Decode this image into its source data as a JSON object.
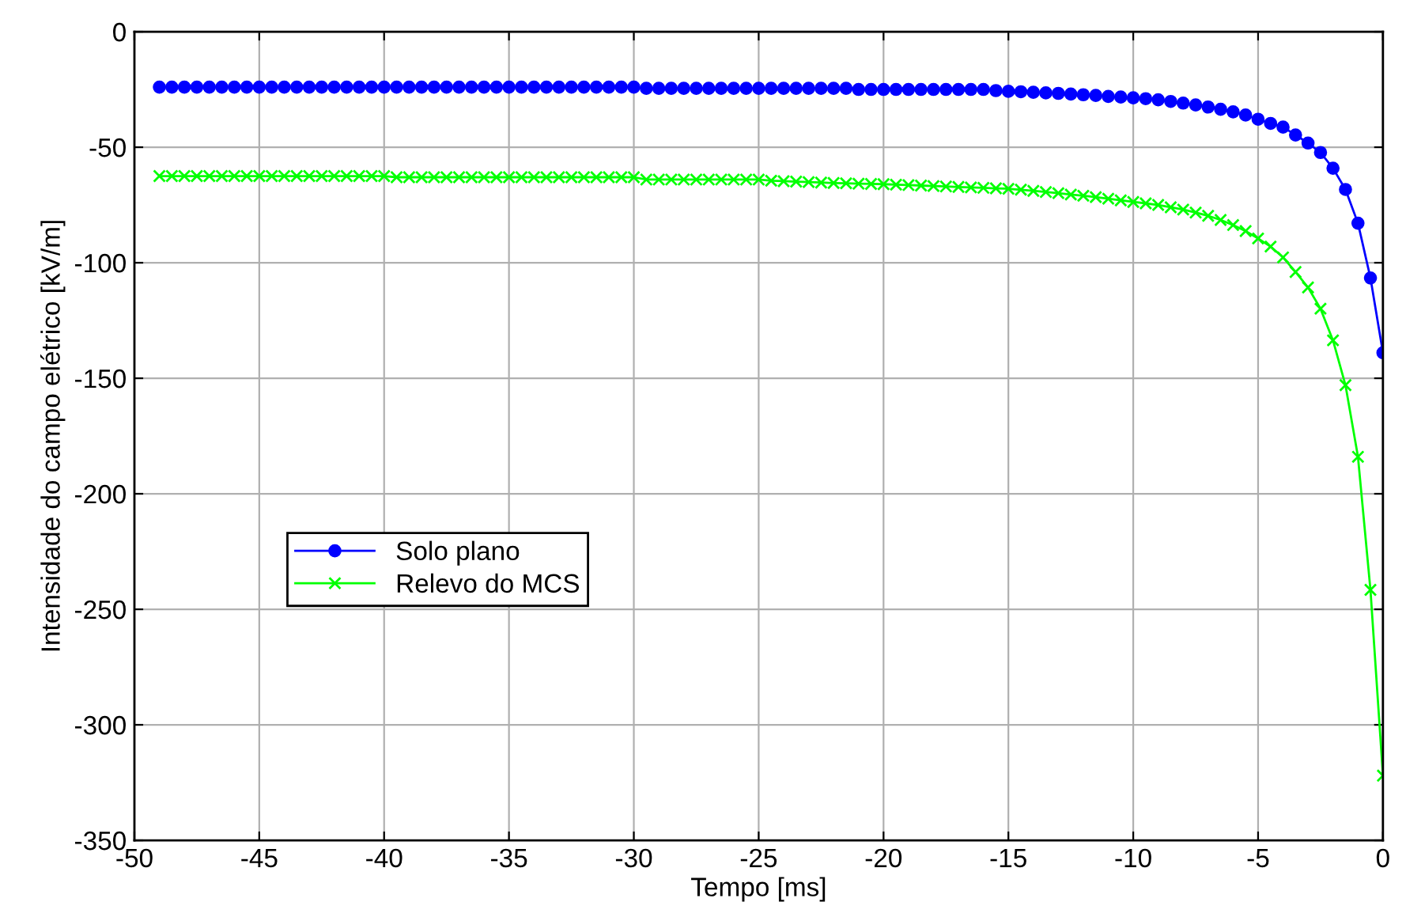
{
  "chart_data": {
    "type": "line",
    "xlabel": "Tempo [ms]",
    "ylabel": "Intensidade do campo elétrico [kV/m]",
    "x": [
      -49,
      -48.5,
      -48,
      -47.5,
      -47,
      -46.5,
      -46,
      -45.5,
      -45,
      -44.5,
      -44,
      -43.5,
      -43,
      -42.5,
      -42,
      -41.5,
      -41,
      -40.5,
      -40,
      -39.5,
      -39,
      -38.5,
      -38,
      -37.5,
      -37,
      -36.5,
      -36,
      -35.5,
      -35,
      -34.5,
      -34,
      -33.5,
      -33,
      -32.5,
      -32,
      -31.5,
      -31,
      -30.5,
      -30,
      -29.5,
      -29,
      -28.5,
      -28,
      -27.5,
      -27,
      -26.5,
      -26,
      -25.5,
      -25,
      -24.5,
      -24,
      -23.5,
      -23,
      -22.5,
      -22,
      -21.5,
      -21,
      -20.5,
      -20,
      -19.5,
      -19,
      -18.5,
      -18,
      -17.5,
      -17,
      -16.5,
      -16,
      -15.5,
      -15,
      -14.5,
      -14,
      -13.5,
      -13,
      -12.5,
      -12,
      -11.5,
      -11,
      -10.5,
      -10,
      -9.5,
      -9,
      -8.5,
      -8,
      -7.5,
      -7,
      -6.5,
      -6,
      -5.5,
      -5,
      -4.5,
      -4,
      -3.5,
      -3,
      -2.5,
      -2,
      -1.5,
      -1,
      -0.5,
      0
    ],
    "series": [
      {
        "name": "Solo plano",
        "color": "#0000ff",
        "marker": "circle",
        "values": [
          -24,
          -24,
          -24,
          -24,
          -24,
          -24,
          -24,
          -24,
          -24,
          -24,
          -24,
          -24,
          -24,
          -24,
          -24,
          -24,
          -24,
          -24,
          -24,
          -24,
          -24,
          -24,
          -24,
          -24,
          -24,
          -24,
          -24,
          -24,
          -24,
          -24,
          -24,
          -24,
          -24,
          -24,
          -24,
          -24,
          -24,
          -24,
          -24,
          -24.5,
          -24.5,
          -24.5,
          -24.5,
          -24.5,
          -24.5,
          -24.5,
          -24.5,
          -24.5,
          -24.5,
          -24.5,
          -24.5,
          -24.5,
          -24.5,
          -24.5,
          -24.5,
          -24.5,
          -25,
          -25,
          -25,
          -25,
          -25,
          -25,
          -25,
          -25,
          -25,
          -25,
          -25,
          -25.5,
          -25.8,
          -26,
          -26.2,
          -26.5,
          -26.7,
          -27,
          -27.3,
          -27.6,
          -28,
          -28.3,
          -28.6,
          -29,
          -29.5,
          -30.2,
          -30.9,
          -31.7,
          -32.6,
          -33.6,
          -34.7,
          -36.1,
          -37.9,
          -39.7,
          -41.3,
          -44.7,
          -48.2,
          -52.3,
          -59.1,
          -68.3,
          -82.9,
          -106.6,
          -139
        ]
      },
      {
        "name": "Relevo do MCS",
        "color": "#00ff00",
        "marker": "cross",
        "values": [
          -62.5,
          -62.5,
          -62.5,
          -62.5,
          -62.5,
          -62.5,
          -62.5,
          -62.5,
          -62.5,
          -62.5,
          -62.5,
          -62.5,
          -62.5,
          -62.5,
          -62.5,
          -62.5,
          -62.5,
          -62.5,
          -62.5,
          -63,
          -63,
          -63,
          -63,
          -63,
          -63,
          -63,
          -63,
          -63,
          -63,
          -63,
          -63,
          -63,
          -63,
          -63,
          -63,
          -63,
          -63,
          -63,
          -63,
          -64,
          -64,
          -64,
          -64,
          -64,
          -64,
          -64,
          -64,
          -64,
          -64,
          -64.5,
          -64.7,
          -64.9,
          -65.1,
          -65.3,
          -65.5,
          -65.6,
          -65.8,
          -65.9,
          -66,
          -66.2,
          -66.4,
          -66.6,
          -66.8,
          -67,
          -67.2,
          -67.4,
          -67.6,
          -67.8,
          -68,
          -68.4,
          -68.9,
          -69.4,
          -69.9,
          -70.5,
          -71,
          -71.6,
          -72.3,
          -73,
          -73.7,
          -74.3,
          -75,
          -76,
          -77,
          -78.3,
          -79.7,
          -81.5,
          -83.7,
          -86.3,
          -89.5,
          -93,
          -97.7,
          -104,
          -110.7,
          -119.9,
          -133.6,
          -153,
          -184,
          -241.6,
          -322
        ]
      }
    ],
    "xlim": [
      -50,
      0
    ],
    "xticks": [
      -50,
      -45,
      -40,
      -35,
      -30,
      -25,
      -20,
      -15,
      -10,
      -5,
      0
    ],
    "ylim": [
      -350,
      0
    ],
    "yticks": [
      -350,
      -300,
      -250,
      -200,
      -150,
      -100,
      -50,
      0
    ],
    "grid": true,
    "legend": "left",
    "line_style": "solid"
  }
}
